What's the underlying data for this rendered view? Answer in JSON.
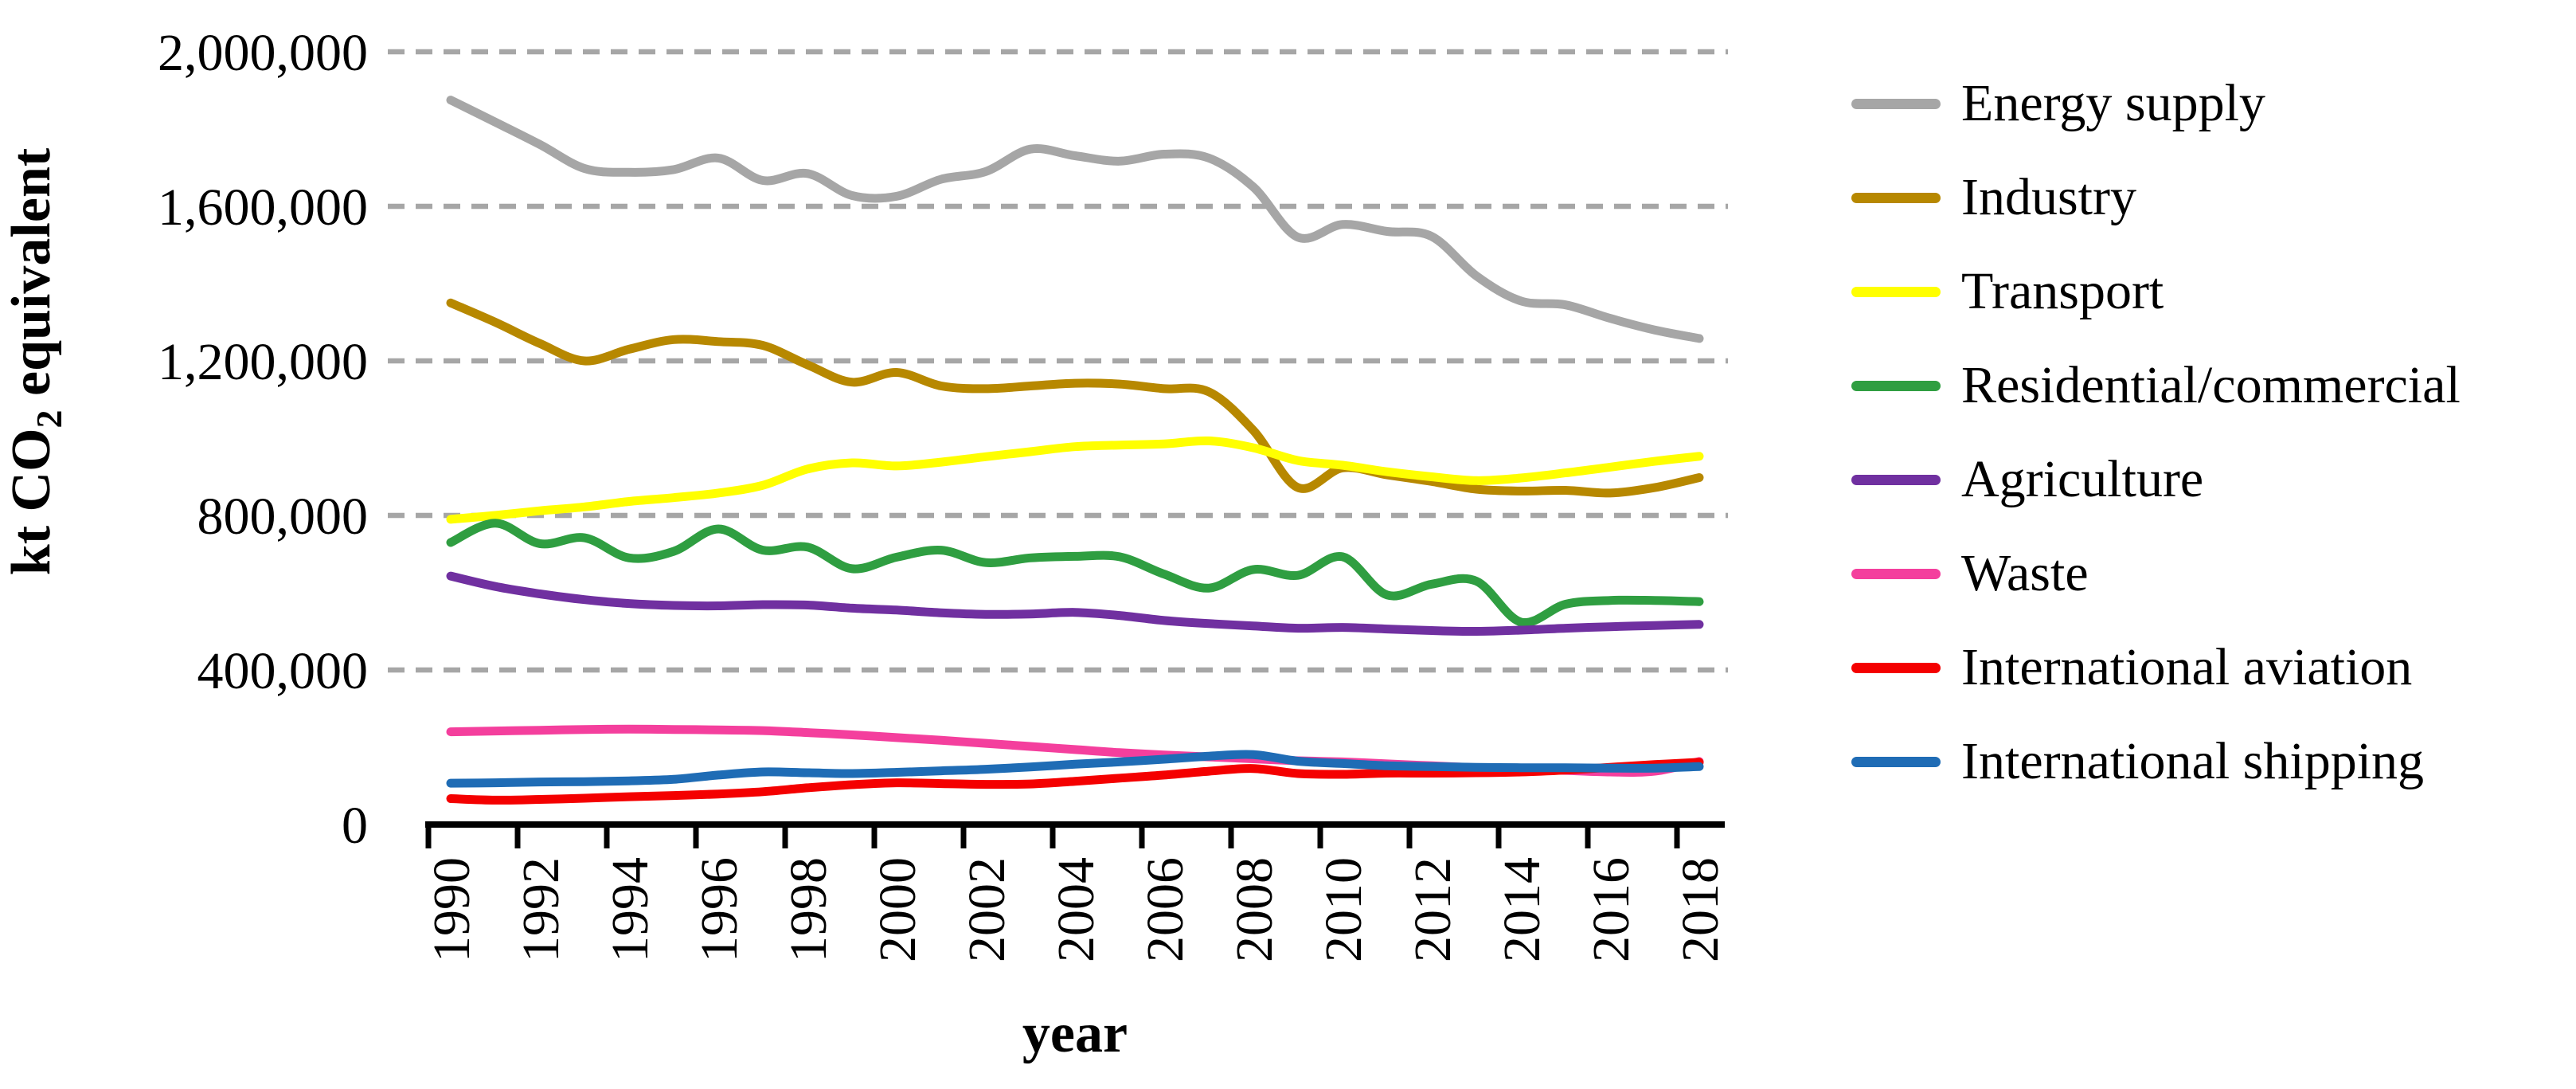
{
  "axes": {
    "y_title_main": "kt CO",
    "y_title_sub": "2",
    "y_title_rest": " equivalent",
    "x_title": "year"
  },
  "chart_data": {
    "type": "line",
    "title": "",
    "xlabel": "year",
    "ylabel": "kt CO2 equivalent",
    "x": [
      1990,
      1991,
      1992,
      1993,
      1994,
      1995,
      1996,
      1997,
      1998,
      1999,
      2000,
      2001,
      2002,
      2003,
      2004,
      2005,
      2006,
      2007,
      2008,
      2009,
      2010,
      2011,
      2012,
      2013,
      2014,
      2015,
      2016,
      2017,
      2018
    ],
    "xtick_labels": [
      "1990",
      "1992",
      "1994",
      "1996",
      "1998",
      "2000",
      "2002",
      "2004",
      "2006",
      "2008",
      "2010",
      "2012",
      "2014",
      "2016",
      "2018"
    ],
    "yticks": [
      {
        "value": 0,
        "label": "0"
      },
      {
        "value": 400000,
        "label": "400,000"
      },
      {
        "value": 800000,
        "label": "800,000"
      },
      {
        "value": 1200000,
        "label": "1,200,000"
      },
      {
        "value": 1600000,
        "label": "1,600,000"
      },
      {
        "value": 2000000,
        "label": "2,000,000"
      }
    ],
    "ylim": [
      0,
      2050000
    ],
    "grid": {
      "horizontal": true,
      "style": "dashed",
      "color": "#a6a6a6"
    },
    "legend_position": "right",
    "line_style": {
      "width": 11,
      "smoothed": true
    },
    "series": [
      {
        "name": "Energy supply",
        "color": "#a6a6a6",
        "values": [
          1875000,
          1818000,
          1760000,
          1698000,
          1688000,
          1695000,
          1725000,
          1667000,
          1685000,
          1628000,
          1626000,
          1670000,
          1690000,
          1748000,
          1731000,
          1717000,
          1735000,
          1725000,
          1650000,
          1520000,
          1553000,
          1535000,
          1522000,
          1420000,
          1355000,
          1345000,
          1310000,
          1280000,
          1258000
        ]
      },
      {
        "name": "Industry",
        "color": "#b78800",
        "values": [
          1350000,
          1300000,
          1245000,
          1200000,
          1230000,
          1255000,
          1250000,
          1240000,
          1190000,
          1145000,
          1170000,
          1135000,
          1128000,
          1135000,
          1142000,
          1140000,
          1128000,
          1120000,
          1020000,
          872000,
          923000,
          905000,
          888000,
          868000,
          863000,
          865000,
          858000,
          872000,
          898000
        ]
      },
      {
        "name": "Transport",
        "color": "#ffff00",
        "values": [
          790000,
          800000,
          812000,
          822000,
          836000,
          846000,
          858000,
          878000,
          920000,
          936000,
          928000,
          938000,
          952000,
          965000,
          978000,
          982000,
          985000,
          993000,
          975000,
          942000,
          930000,
          913000,
          900000,
          890000,
          897000,
          910000,
          925000,
          940000,
          953000
        ]
      },
      {
        "name": "Residential/commercial",
        "color": "#2f9e41",
        "values": [
          730000,
          780000,
          727000,
          742000,
          690000,
          707000,
          765000,
          710000,
          718000,
          662000,
          692000,
          710000,
          678000,
          690000,
          694000,
          693000,
          648000,
          612000,
          660000,
          645000,
          693000,
          594000,
          622000,
          630000,
          524000,
          570000,
          580000,
          580000,
          577000
        ]
      },
      {
        "name": "Agriculture",
        "color": "#7030a0",
        "values": [
          643000,
          616000,
          597000,
          582000,
          572000,
          567000,
          566000,
          569000,
          568000,
          560000,
          555000,
          548000,
          544000,
          545000,
          549000,
          541000,
          528000,
          520000,
          514000,
          508000,
          510000,
          506000,
          502000,
          500000,
          503000,
          508000,
          512000,
          515000,
          518000
        ]
      },
      {
        "name": "Waste",
        "color": "#f43f9d",
        "values": [
          240000,
          242000,
          244000,
          246000,
          247000,
          246000,
          245000,
          243000,
          238000,
          232000,
          225000,
          218000,
          210000,
          202000,
          194000,
          186000,
          180000,
          175000,
          170000,
          165000,
          162000,
          157000,
          152000,
          147000,
          143000,
          140000,
          136000,
          138000,
          163000
        ]
      },
      {
        "name": "International aviation",
        "color": "#f40000",
        "values": [
          67000,
          63000,
          65000,
          68000,
          72000,
          75000,
          79000,
          85000,
          95000,
          103000,
          108000,
          106000,
          104000,
          105000,
          112000,
          120000,
          128000,
          138000,
          145000,
          132000,
          130000,
          133000,
          133000,
          134000,
          136000,
          141000,
          148000,
          155000,
          161000
        ]
      },
      {
        "name": "International shipping",
        "color": "#1f6cb5",
        "values": [
          107000,
          108000,
          110000,
          111000,
          113000,
          117000,
          128000,
          136000,
          134000,
          132000,
          135000,
          139000,
          143000,
          149000,
          156000,
          162000,
          169000,
          177000,
          181000,
          164000,
          158000,
          152000,
          150000,
          148000,
          147000,
          147000,
          146000,
          146000,
          150000
        ]
      }
    ]
  }
}
